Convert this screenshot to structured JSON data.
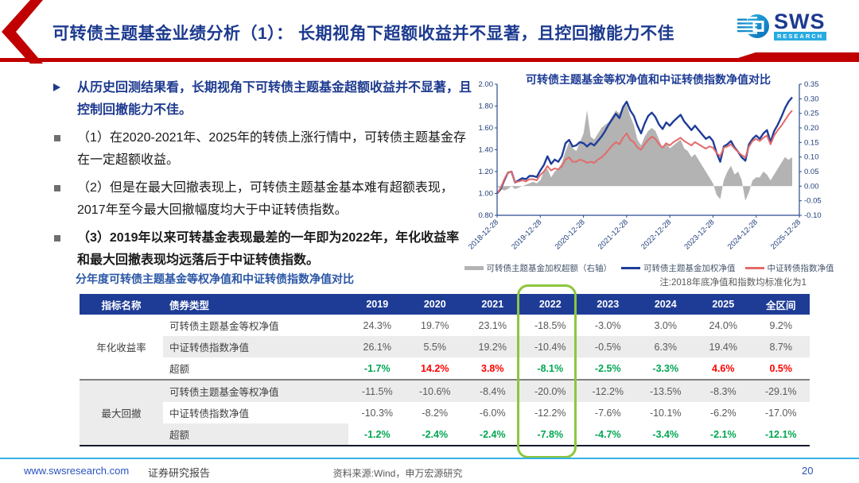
{
  "header": {
    "title": "可转债主题基金业绩分析（1）： 长期视角下超额收益并不显著，且控回撤能力不佳",
    "logo": {
      "name": "SWS",
      "sub": "RESEARCH"
    }
  },
  "bullets": {
    "lead": "从历史回测结果看，长期视角下可转债主题基金超额收益并不显著，且控制回撤能力不佳。",
    "items": [
      "（1）在2020-2021年、2025年的转债上涨行情中，可转债主题基金存在一定超额收益。",
      "（2）但是在最大回撤表现上，可转债主题基金基本难有超额表现，2017年至今最大回撤幅度均大于中证转债指数。",
      "（3）2019年以来可转基金表现最差的一年即为2022年，年化收益率和最大回撤表现均远落后于中证转债指数。"
    ]
  },
  "table_caption": "分年度可转债主题基金等权净值和中证转债指数净值对比",
  "chart_note": "注:2018年底净值和指数均标准化为1",
  "chart_data": {
    "type": "line",
    "title": "可转债主题基金等权净值和中证转债指数净值对比",
    "x_tick_labels": [
      "2018-12-28",
      "2019-12-28",
      "2020-12-28",
      "2021-12-28",
      "2022-12-28",
      "2023-12-28",
      "2024-12-28",
      "2025-12-28"
    ],
    "x_months_total": 84,
    "left_axis": {
      "min": 0.8,
      "max": 2.0,
      "ticks": [
        "2.00",
        "1.80",
        "1.60",
        "1.40",
        "1.20",
        "1.00",
        "0.80"
      ]
    },
    "right_axis": {
      "min": -0.1,
      "max": 0.35,
      "ticks": [
        "0.35",
        "0.30",
        "0.25",
        "0.20",
        "0.15",
        "0.10",
        "0.05",
        "0.00",
        "-0.05",
        "-0.10"
      ]
    },
    "grid": false,
    "legend_position": "bottom",
    "series": [
      {
        "name": "可转债主题基金加权超额（右轴）",
        "type": "area",
        "axis": "right",
        "color": "#b3b3b3",
        "values": [
          0.0,
          -0.01,
          -0.015,
          -0.01,
          0.0,
          -0.01,
          -0.005,
          0.0,
          0.005,
          0.01,
          0.015,
          0.01,
          0.02,
          0.05,
          0.06,
          0.03,
          0.05,
          0.06,
          0.08,
          0.12,
          0.15,
          0.13,
          0.12,
          0.15,
          0.18,
          0.26,
          0.17,
          0.16,
          0.18,
          0.2,
          0.21,
          0.22,
          0.24,
          0.26,
          0.25,
          0.27,
          0.28,
          0.24,
          0.21,
          0.16,
          0.14,
          0.17,
          0.19,
          0.2,
          0.19,
          0.16,
          0.13,
          0.15,
          0.13,
          0.14,
          0.15,
          0.16,
          0.13,
          0.12,
          0.1,
          0.11,
          0.09,
          0.07,
          0.05,
          0.03,
          0.01,
          -0.03,
          -0.045,
          0.02,
          0.05,
          0.07,
          0.04,
          0.05,
          0.02,
          -0.05,
          -0.02,
          0.02,
          0.03,
          0.03,
          0.05,
          0.04,
          0.02,
          0.04,
          0.06,
          0.08,
          0.1,
          0.09,
          0.1
        ]
      },
      {
        "name": "可转债主题基金加权净值",
        "type": "line",
        "axis": "left",
        "color": "#1f3d99",
        "values": [
          1.0,
          1.04,
          1.12,
          1.19,
          1.2,
          1.1,
          1.12,
          1.14,
          1.13,
          1.16,
          1.16,
          1.15,
          1.21,
          1.26,
          1.34,
          1.27,
          1.31,
          1.29,
          1.34,
          1.46,
          1.49,
          1.43,
          1.44,
          1.47,
          1.46,
          1.43,
          1.46,
          1.44,
          1.48,
          1.52,
          1.57,
          1.63,
          1.68,
          1.73,
          1.69,
          1.79,
          1.84,
          1.76,
          1.71,
          1.62,
          1.55,
          1.64,
          1.71,
          1.74,
          1.7,
          1.63,
          1.59,
          1.65,
          1.62,
          1.66,
          1.69,
          1.72,
          1.66,
          1.62,
          1.58,
          1.62,
          1.58,
          1.54,
          1.5,
          1.52,
          1.48,
          1.37,
          1.29,
          1.43,
          1.45,
          1.48,
          1.42,
          1.38,
          1.33,
          1.3,
          1.45,
          1.5,
          1.53,
          1.5,
          1.55,
          1.58,
          1.47,
          1.57,
          1.63,
          1.7,
          1.78,
          1.84,
          1.88
        ]
      },
      {
        "name": "中证转债指数净值",
        "type": "line",
        "axis": "left",
        "color": "#e46a6a",
        "values": [
          1.0,
          1.05,
          1.13,
          1.19,
          1.2,
          1.1,
          1.11,
          1.12,
          1.11,
          1.13,
          1.13,
          1.12,
          1.17,
          1.2,
          1.25,
          1.21,
          1.23,
          1.22,
          1.25,
          1.31,
          1.33,
          1.29,
          1.29,
          1.31,
          1.3,
          1.28,
          1.29,
          1.28,
          1.31,
          1.33,
          1.36,
          1.4,
          1.44,
          1.47,
          1.45,
          1.51,
          1.55,
          1.49,
          1.47,
          1.42,
          1.4,
          1.45,
          1.49,
          1.52,
          1.5,
          1.45,
          1.42,
          1.46,
          1.44,
          1.47,
          1.49,
          1.51,
          1.48,
          1.46,
          1.44,
          1.47,
          1.45,
          1.43,
          1.41,
          1.43,
          1.42,
          1.37,
          1.34,
          1.42,
          1.43,
          1.45,
          1.41,
          1.38,
          1.35,
          1.33,
          1.43,
          1.48,
          1.5,
          1.48,
          1.51,
          1.53,
          1.45,
          1.53,
          1.58,
          1.62,
          1.67,
          1.72,
          1.76
        ]
      }
    ]
  },
  "table": {
    "columns": [
      "指标名称",
      "债券类型",
      "2019",
      "2020",
      "2021",
      "2022",
      "2023",
      "2024",
      "2025",
      "全区间"
    ],
    "highlight_column": "2022",
    "positive_color": "#ff0000",
    "negative_color": "#00a651",
    "groups": [
      {
        "name": "年化收益率",
        "rows": [
          {
            "type": "可转债主题基金等权净值",
            "style": "plain",
            "values": [
              "24.3%",
              "19.7%",
              "23.1%",
              "-18.5%",
              "-3.0%",
              "3.0%",
              "24.0%",
              "9.2%"
            ]
          },
          {
            "type": "中证转债指数净值",
            "style": "plain",
            "values": [
              "26.1%",
              "5.5%",
              "19.2%",
              "-10.4%",
              "-0.5%",
              "6.3%",
              "19.4%",
              "8.7%"
            ]
          },
          {
            "type": "超额",
            "style": "excess",
            "values": [
              "-1.7%",
              "14.2%",
              "3.8%",
              "-8.1%",
              "-2.5%",
              "-3.3%",
              "4.6%",
              "0.5%"
            ]
          }
        ]
      },
      {
        "name": "最大回撤",
        "rows": [
          {
            "type": "可转债主题基金等权净值",
            "style": "plain",
            "values": [
              "-11.5%",
              "-10.6%",
              "-8.4%",
              "-20.0%",
              "-12.2%",
              "-13.5%",
              "-8.3%",
              "-29.1%"
            ]
          },
          {
            "type": "中证转债指数净值",
            "style": "plain",
            "values": [
              "-10.3%",
              "-8.2%",
              "-6.0%",
              "-12.2%",
              "-7.6%",
              "-10.1%",
              "-6.2%",
              "-17.0%"
            ]
          },
          {
            "type": "超额",
            "style": "excess",
            "values": [
              "-1.2%",
              "-2.4%",
              "-2.4%",
              "-7.8%",
              "-4.7%",
              "-3.4%",
              "-2.1%",
              "-12.1%"
            ]
          }
        ]
      }
    ]
  },
  "footer": {
    "url": "www.swsresearch.com",
    "report_type": "证券研究报告",
    "source": "资料来源:Wind，申万宏源研究",
    "page": "20"
  },
  "colors": {
    "brand_red": "#c00000",
    "navy": "#1c3a8f",
    "table_header_bg": "#1e3c96",
    "stripe": "#ececec",
    "excess_positive_red": "#ff0000",
    "excess_negative_green": "#00a651",
    "chart_fund_blue": "#1f3d99",
    "chart_index_red": "#e46a6a",
    "chart_excess_gray": "#b3b3b3",
    "axis_label_blue": "#1f3d7a",
    "footer_cyan": "#35b2e5",
    "highlight_green": "#8dc63f"
  }
}
